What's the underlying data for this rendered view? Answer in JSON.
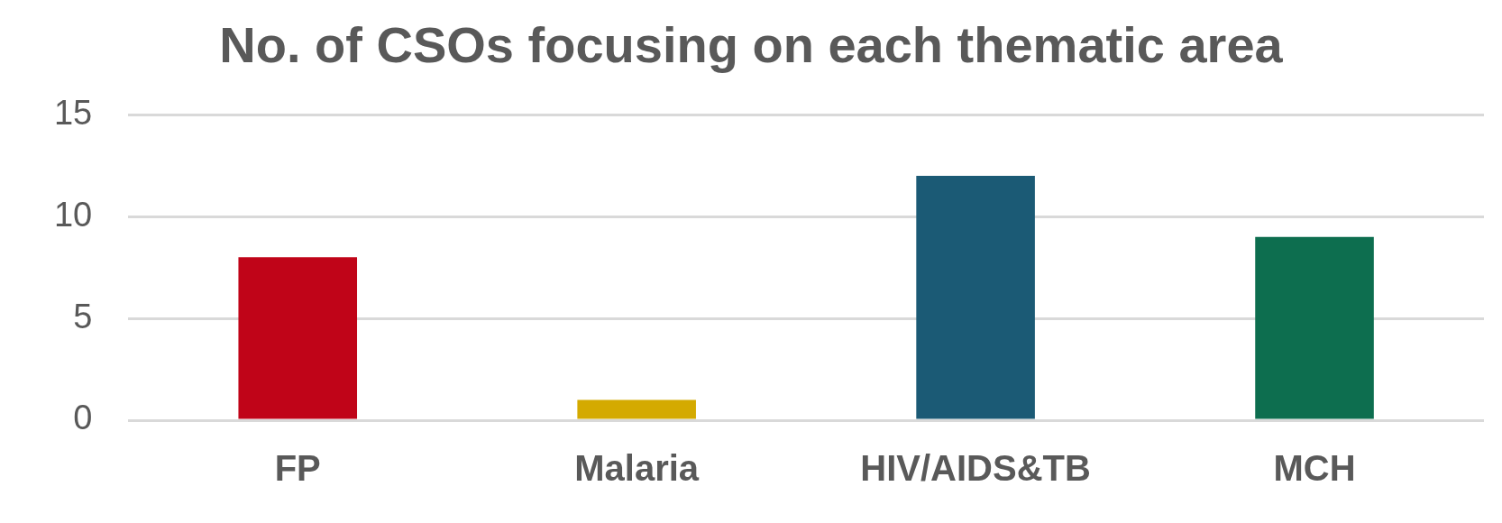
{
  "chart_data": {
    "type": "bar",
    "title": "No. of CSOs focusing on each thematic area",
    "categories": [
      "FP",
      "Malaria",
      "HIV/AIDS&TB",
      "MCH"
    ],
    "values": [
      8,
      1,
      12,
      9
    ],
    "colors": [
      "#c00418",
      "#d4aa00",
      "#1b5a75",
      "#0d6e4f"
    ],
    "ylim": [
      0,
      15
    ],
    "yticks": [
      0,
      5,
      10,
      15
    ],
    "grid": "y",
    "legend": false
  }
}
